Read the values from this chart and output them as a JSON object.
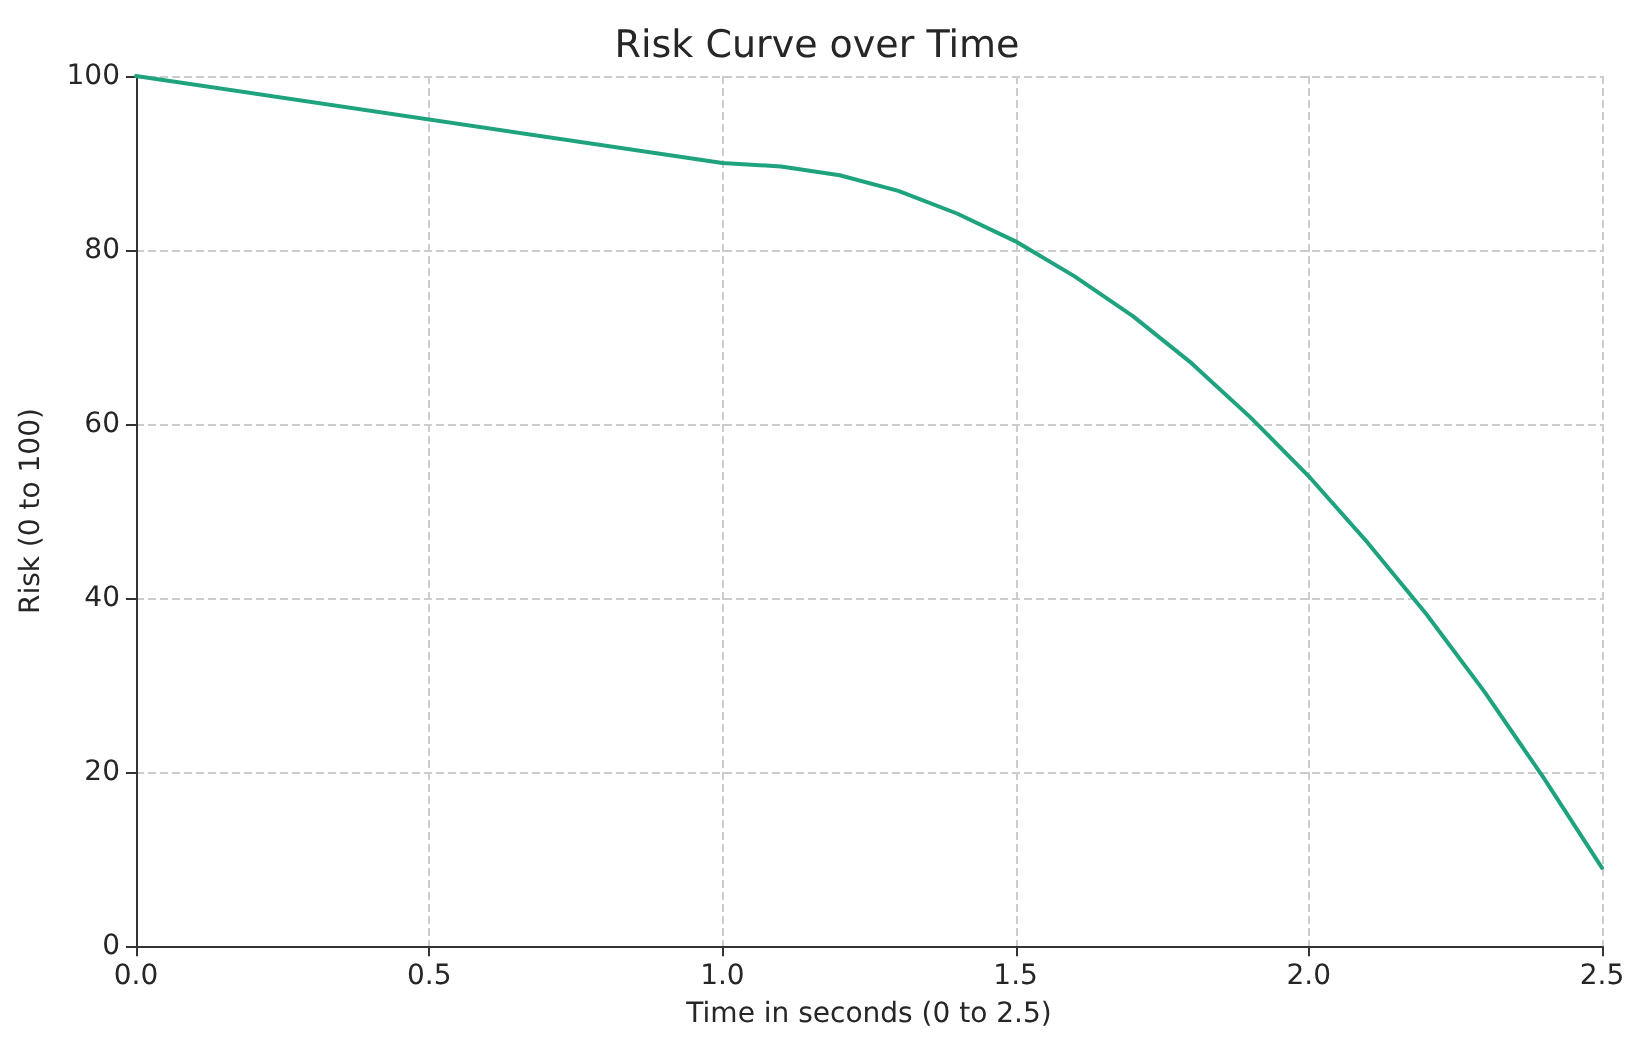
{
  "chart_data": {
    "type": "line",
    "title": "Risk Curve over Time",
    "xlabel": "Time in seconds (0 to 2.5)",
    "ylabel": "Risk (0 to 100)",
    "x": [
      0,
      1,
      1.1,
      1.2,
      1.3,
      1.4,
      1.5,
      1.6,
      1.7,
      1.8,
      1.9,
      2.0,
      2.1,
      2.2,
      2.3,
      2.4,
      2.5
    ],
    "series": [
      {
        "color": "#1fa37f",
        "values": [
          100,
          90,
          89.6,
          88.6,
          86.8,
          84.2,
          81,
          77,
          72.4,
          67,
          60.8,
          54,
          46.4,
          38.2,
          29.2,
          19.4,
          9
        ]
      }
    ],
    "xlim": [
      0,
      2.5
    ],
    "xticks": [
      {
        "value": 0,
        "label": "0.0"
      },
      0.5,
      {
        "value": 1,
        "label": "1.0"
      },
      1.5,
      {
        "value": 2,
        "label": "2.0"
      },
      2.5
    ],
    "ylim": [
      0,
      100
    ],
    "yticks": [
      0,
      20,
      40,
      60,
      80,
      100
    ],
    "grid": true,
    "marker": "none",
    "line_style": "solid"
  }
}
